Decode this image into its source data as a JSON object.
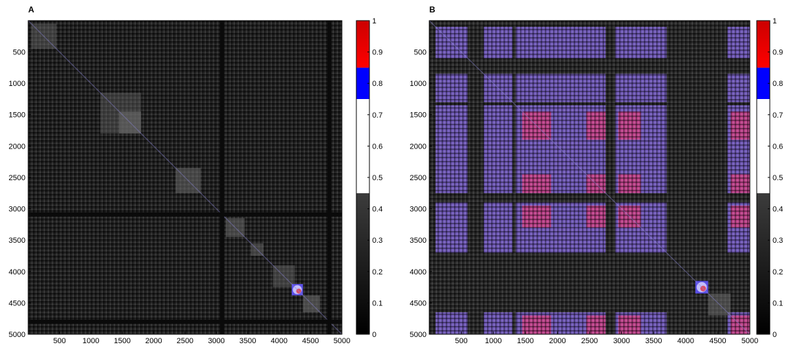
{
  "chart_data": [
    {
      "type": "heatmap",
      "panel": "A",
      "xlim": [
        1,
        5000
      ],
      "ylim": [
        1,
        5000
      ],
      "y_reversed": true,
      "x_ticks": [
        500,
        1000,
        1500,
        2000,
        2500,
        3000,
        3500,
        4000,
        4500,
        5000
      ],
      "y_ticks": [
        500,
        1000,
        1500,
        2000,
        2500,
        3000,
        3500,
        4000,
        4500,
        5000
      ],
      "background": "#1d1d1d",
      "dark_bands": [
        3090,
        4800
      ],
      "blocks": [
        {
          "from": 50,
          "to": 450,
          "value": 0.3
        },
        {
          "from": 1450,
          "to": 1800,
          "value": 0.45
        },
        {
          "from": 1150,
          "to": 1800,
          "value": 0.25
        },
        {
          "from": 2350,
          "to": 2750,
          "value": 0.4
        },
        {
          "from": 3150,
          "to": 3450,
          "value": 0.4
        },
        {
          "from": 3550,
          "to": 3750,
          "value": 0.35
        },
        {
          "from": 3900,
          "to": 4250,
          "value": 0.3
        },
        {
          "from": 4200,
          "to": 4380,
          "value": 0.8
        },
        {
          "from": 4380,
          "to": 4650,
          "value": 0.45
        }
      ]
    },
    {
      "type": "heatmap",
      "panel": "B",
      "xlim": [
        1,
        5000
      ],
      "ylim": [
        1,
        5000
      ],
      "y_reversed": true,
      "x_ticks": [
        500,
        1000,
        1500,
        2000,
        2500,
        3000,
        3500,
        4000,
        4500,
        5000
      ],
      "y_ticks": [
        500,
        1000,
        1500,
        2000,
        2500,
        3000,
        3500,
        4000,
        4500,
        5000
      ],
      "background": "#2a2a2a",
      "active_ranges": [
        [
          100,
          600
        ],
        [
          850,
          1300
        ],
        [
          1350,
          2750
        ],
        [
          2900,
          3700
        ],
        [
          4650,
          5000
        ]
      ],
      "hot_ranges": [
        [
          1450,
          1900
        ],
        [
          2450,
          2750
        ],
        [
          2950,
          3300
        ],
        [
          4700,
          5000
        ]
      ],
      "blocks": [
        {
          "from": 4150,
          "to": 4350,
          "value": 0.8
        },
        {
          "from": 4350,
          "to": 4700,
          "value": 0.4
        }
      ]
    }
  ],
  "colorbar": {
    "ticks": [
      0,
      0.1,
      0.2,
      0.3,
      0.4,
      0.5,
      0.6,
      0.7,
      0.8,
      0.9,
      1
    ],
    "segments": [
      {
        "from": 0.0,
        "to": 0.45,
        "colors": [
          "#000000",
          "#3c3c3c"
        ]
      },
      {
        "from": 0.45,
        "to": 0.75,
        "colors": [
          "#ffffff",
          "#ffffff"
        ]
      },
      {
        "from": 0.75,
        "to": 0.85,
        "colors": [
          "#0000ff",
          "#0000ff"
        ]
      },
      {
        "from": 0.85,
        "to": 1.0,
        "colors": [
          "#ff0000",
          "#cc0000"
        ]
      }
    ]
  },
  "colors": {
    "block_gray": "#6a6a6a",
    "purple": "#7a5fd0",
    "blue_violet": "#5a4fe6",
    "magenta": "#d8387a",
    "red": "#e3202a"
  },
  "labels": {
    "panel_a": "A",
    "panel_b": "B"
  }
}
